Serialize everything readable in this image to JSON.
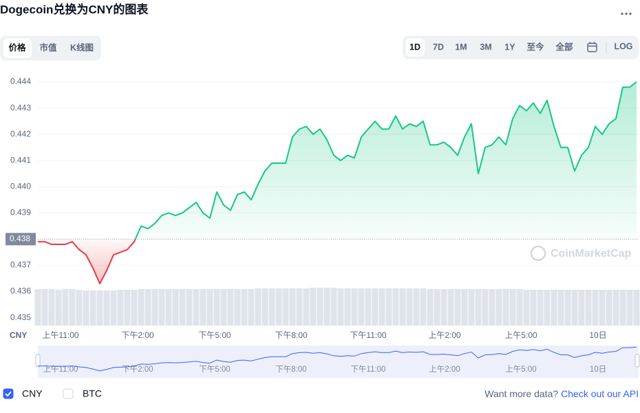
{
  "header": {
    "title": "Dogecoin兑换为CNY的图表"
  },
  "tabs": [
    "价格",
    "市值",
    "K线图"
  ],
  "ranges": [
    "1D",
    "7D",
    "1M",
    "3M",
    "1Y",
    "至今",
    "全部"
  ],
  "log_button": "LOG",
  "chart_data": {
    "type": "line",
    "axis_label": "CNY",
    "xlim": [
      0,
      87
    ],
    "xticks": [
      {
        "value": 3.3,
        "label": "上午11:00"
      },
      {
        "value": 14.5,
        "label": "下午2:00"
      },
      {
        "value": 25.7,
        "label": "下午5:00"
      },
      {
        "value": 36.8,
        "label": "下午8:00"
      },
      {
        "value": 48,
        "label": "下午11:00"
      },
      {
        "value": 59.1,
        "label": "上午2:00"
      },
      {
        "value": 70.2,
        "label": "上午5:00"
      },
      {
        "value": 81.4,
        "label": "10日"
      }
    ],
    "ylim": [
      0.4347,
      0.4445
    ],
    "yticks": [
      0.435,
      0.436,
      0.437,
      0.438,
      0.439,
      {
        "value": 0.44,
        "label": "0.440"
      },
      0.441,
      0.442,
      0.443,
      0.444
    ],
    "grid": true,
    "baseline": 0.438,
    "up_color": "#16c784",
    "down_color": "#ea3943",
    "series": [
      {
        "name": "CNY",
        "values": [
          0.4379,
          0.4379,
          0.4378,
          0.4378,
          0.4378,
          0.4379,
          0.4376,
          0.4374,
          0.4369,
          0.4363,
          0.4368,
          0.4374,
          0.4375,
          0.4376,
          0.4379,
          0.4385,
          0.4384,
          0.4386,
          0.4389,
          0.439,
          0.4389,
          0.439,
          0.4392,
          0.4394,
          0.439,
          0.4388,
          0.4398,
          0.4393,
          0.4391,
          0.4397,
          0.4398,
          0.4395,
          0.4401,
          0.4406,
          0.4409,
          0.4409,
          0.4409,
          0.4419,
          0.4422,
          0.4423,
          0.442,
          0.4422,
          0.4418,
          0.4412,
          0.441,
          0.4412,
          0.4411,
          0.4419,
          0.4422,
          0.4425,
          0.4422,
          0.4422,
          0.4427,
          0.4422,
          0.4424,
          0.4423,
          0.4425,
          0.4416,
          0.4416,
          0.4417,
          0.4415,
          0.4412,
          0.4419,
          0.4424,
          0.4405,
          0.4415,
          0.4416,
          0.4419,
          0.4416,
          0.4426,
          0.4431,
          0.4429,
          0.4432,
          0.4428,
          0.4433,
          0.4423,
          0.4415,
          0.4415,
          0.4406,
          0.4412,
          0.4415,
          0.4423,
          0.442,
          0.4424,
          0.4426,
          0.4438,
          0.4438,
          0.444
        ]
      }
    ],
    "volume": [
      54,
      54,
      54,
      53,
      54,
      54,
      53,
      52,
      52,
      52,
      52,
      52,
      53,
      53,
      53,
      54,
      54,
      54,
      54,
      54,
      54,
      54,
      54,
      54,
      54,
      54,
      54,
      54,
      54,
      54,
      54,
      54,
      55,
      55,
      55,
      55,
      55,
      55,
      55,
      55,
      56,
      56,
      56,
      56,
      55,
      55,
      55,
      55,
      55,
      55,
      55,
      55,
      55,
      55,
      55,
      55,
      55,
      54,
      54,
      54,
      54,
      54,
      54,
      54,
      54,
      54,
      54,
      54,
      54,
      54,
      54,
      53,
      53,
      53,
      53,
      53,
      53,
      53,
      53,
      53,
      53,
      53,
      53,
      53,
      53,
      53,
      53,
      53
    ],
    "watermark": "CoinMarketCap"
  },
  "legend": [
    {
      "label": "CNY",
      "checked": true
    },
    {
      "label": "BTC",
      "checked": false
    }
  ],
  "footer": {
    "text": "Want more data?",
    "link": "Check out our API"
  }
}
